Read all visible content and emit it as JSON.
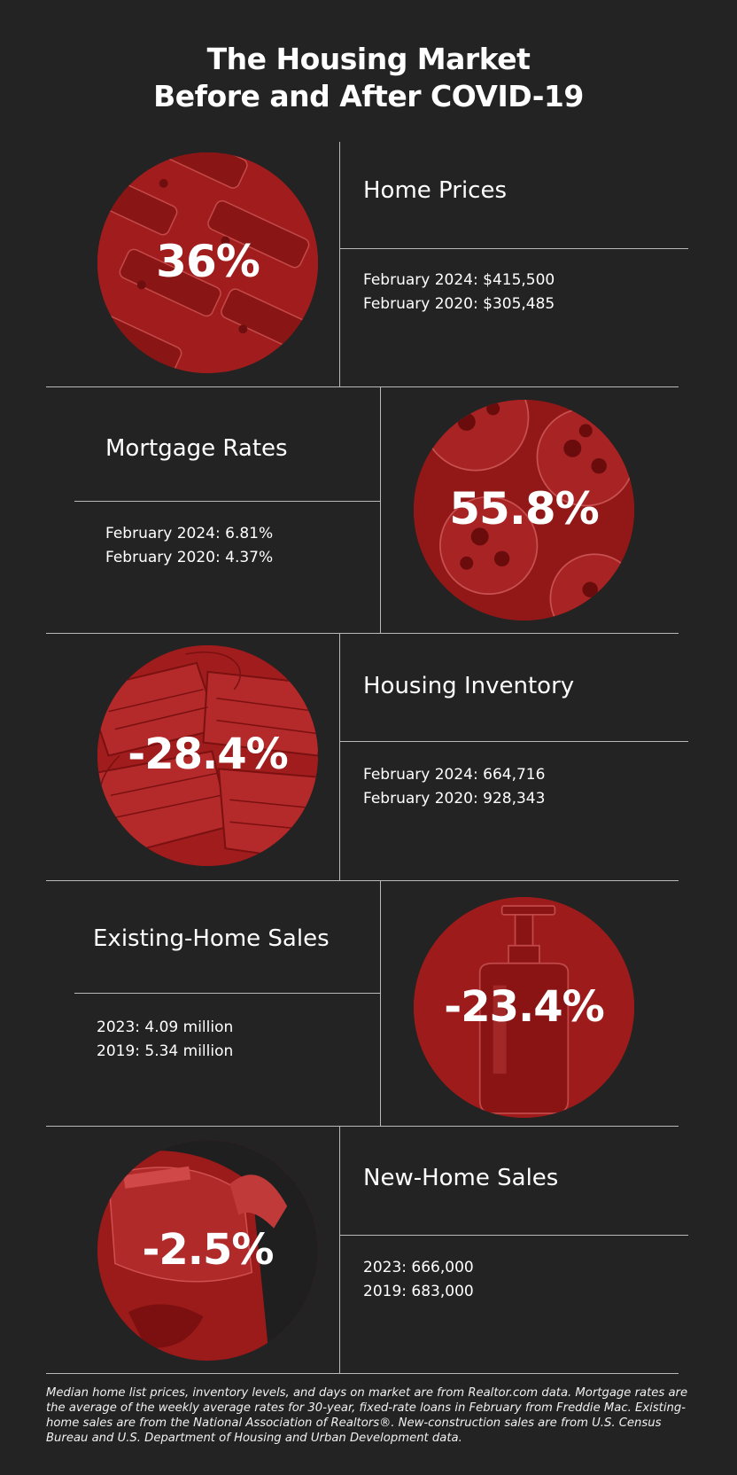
{
  "title": {
    "line1": "The Housing Market",
    "line2": "Before and After COVID-19"
  },
  "sections": [
    {
      "heading": "Home Prices",
      "percent": "36%",
      "stat1": "February 2024: $415,500",
      "stat2": "February 2020: $305,485"
    },
    {
      "heading": "Mortgage Rates",
      "percent": "55.8%",
      "stat1": "February 2024: 6.81%",
      "stat2": "February 2020: 4.37%"
    },
    {
      "heading": "Housing Inventory",
      "percent": "-28.4%",
      "stat1": "February 2024: 664,716",
      "stat2": "February 2020: 928,343"
    },
    {
      "heading": "Existing-Home Sales",
      "percent": "-23.4%",
      "stat1": "2023: 4.09 million",
      "stat2": "2019: 5.34 million"
    },
    {
      "heading": "New-Home Sales",
      "percent": "-2.5%",
      "stat1": "2023: 666,000",
      "stat2": "2019: 683,000"
    }
  ],
  "footnote": "Median home list prices, inventory levels, and days on market are from Realtor.com data. Mortgage rates are the average of the weekly average rates for 30-year, fixed-rate loans in February from Freddie Mac. Existing-home sales are from the National Association of Realtors®. New-construction sales are from U.S. Census Bureau and U.S. Department of Housing and Urban Development data.",
  "colors": {
    "background": "#232323",
    "accent_red": "#9c1b1b",
    "divider": "#b9b9b9",
    "text": "#ffffff"
  }
}
